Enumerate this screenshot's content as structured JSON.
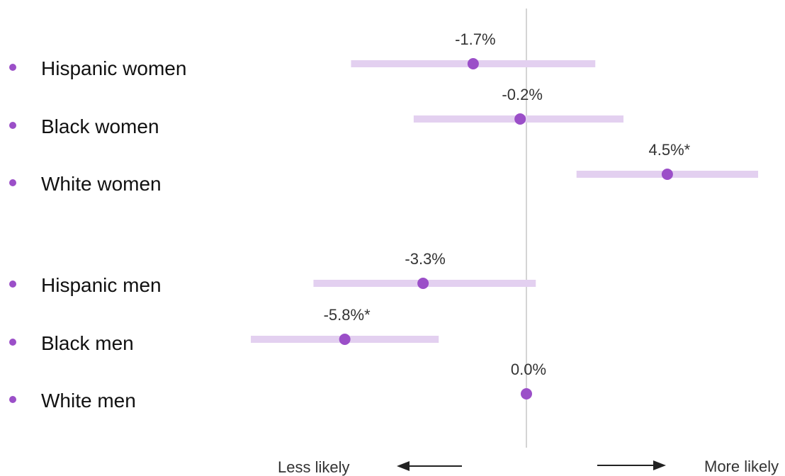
{
  "chart_data": {
    "type": "scatter",
    "title": "",
    "xlabel": "",
    "ylabel": "",
    "xlim": [
      -10,
      10
    ],
    "categories": [
      "Hispanic women",
      "Black women",
      "White women",
      "Hispanic men",
      "Black men",
      "White men"
    ],
    "series": [
      {
        "values": [
          -1.7,
          -0.2,
          4.5,
          -3.3,
          -5.8,
          0.0
        ],
        "ci_low": [
          -5.6,
          -3.6,
          1.6,
          -6.8,
          -8.8,
          0.0
        ],
        "ci_high": [
          2.2,
          3.1,
          7.4,
          0.3,
          -2.8,
          0.0
        ],
        "labels": [
          "-1.7%",
          "-0.2%",
          "4.5%*",
          "-3.3%",
          "-5.8%*",
          "0.0%"
        ]
      }
    ],
    "annotations": {
      "left": "Less likely",
      "right": "More likely"
    },
    "colors": {
      "point": "#9b4fc8",
      "interval": "#e3d0f0",
      "bullet": "#9b4fc8",
      "zero_line": "#a9a9a9"
    }
  }
}
